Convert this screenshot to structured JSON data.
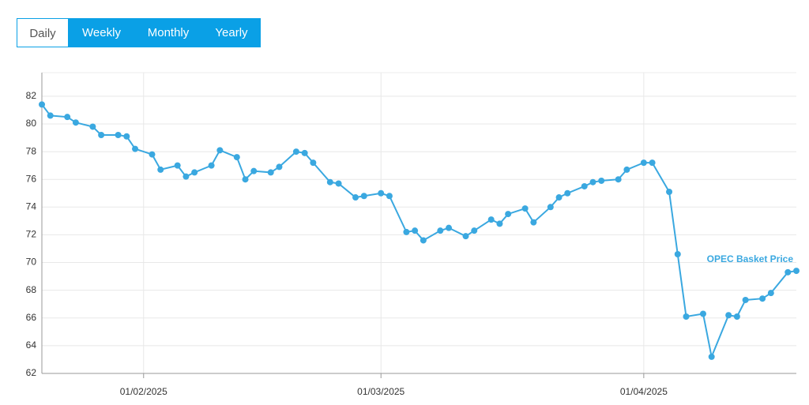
{
  "tabs": [
    "Daily",
    "Weekly",
    "Monthly",
    "Yearly"
  ],
  "chart_data": {
    "type": "line",
    "x": [
      "2025-01-20",
      "2025-01-21",
      "2025-01-23",
      "2025-01-24",
      "2025-01-26",
      "2025-01-27",
      "2025-01-29",
      "2025-01-30",
      "2025-01-31",
      "2025-02-02",
      "2025-02-03",
      "2025-02-05",
      "2025-02-06",
      "2025-02-07",
      "2025-02-09",
      "2025-02-10",
      "2025-02-12",
      "2025-02-13",
      "2025-02-14",
      "2025-02-16",
      "2025-02-17",
      "2025-02-19",
      "2025-02-20",
      "2025-02-21",
      "2025-02-23",
      "2025-02-24",
      "2025-02-26",
      "2025-02-27",
      "2025-03-01",
      "2025-03-02",
      "2025-03-04",
      "2025-03-05",
      "2025-03-06",
      "2025-03-08",
      "2025-03-09",
      "2025-03-11",
      "2025-03-12",
      "2025-03-14",
      "2025-03-15",
      "2025-03-16",
      "2025-03-18",
      "2025-03-19",
      "2025-03-21",
      "2025-03-22",
      "2025-03-23",
      "2025-03-25",
      "2025-03-26",
      "2025-03-27",
      "2025-03-29",
      "2025-03-30",
      "2025-04-01",
      "2025-04-02",
      "2025-04-04",
      "2025-04-05",
      "2025-04-06",
      "2025-04-08",
      "2025-04-09",
      "2025-04-11",
      "2025-04-12",
      "2025-04-13",
      "2025-04-15",
      "2025-04-16",
      "2025-04-18",
      "2025-04-19"
    ],
    "series": [
      {
        "name": "OPEC Basket Price",
        "color": "#3aa8e0",
        "values": [
          81.4,
          80.6,
          80.5,
          80.1,
          79.8,
          79.2,
          79.2,
          79.1,
          78.2,
          77.8,
          76.7,
          77.0,
          76.2,
          76.5,
          77.0,
          78.1,
          77.6,
          76.0,
          76.6,
          76.5,
          76.9,
          78.0,
          77.9,
          77.2,
          75.8,
          75.7,
          74.7,
          74.8,
          75.0,
          74.8,
          72.2,
          72.3,
          71.6,
          72.3,
          72.5,
          71.9,
          72.3,
          73.1,
          72.8,
          73.5,
          73.9,
          72.9,
          74.0,
          74.7,
          75.0,
          75.5,
          75.8,
          75.9,
          76.0,
          76.7,
          77.2,
          77.2,
          75.1,
          70.6,
          66.1,
          66.3,
          63.2,
          66.2,
          66.1,
          67.3,
          67.4,
          67.8,
          69.3,
          69.4
        ]
      }
    ],
    "xlim": [
      "2025-01-20",
      "2025-04-19"
    ],
    "xticks": [
      {
        "value": "2025-02-01",
        "label": "01/02/2025"
      },
      {
        "value": "2025-03-01",
        "label": "01/03/2025"
      },
      {
        "value": "2025-04-01",
        "label": "01/04/2025"
      }
    ],
    "ylim": [
      62,
      83.7
    ],
    "yticks": [
      62,
      64,
      66,
      68,
      70,
      72,
      74,
      76,
      78,
      80,
      82
    ],
    "grid": true
  }
}
